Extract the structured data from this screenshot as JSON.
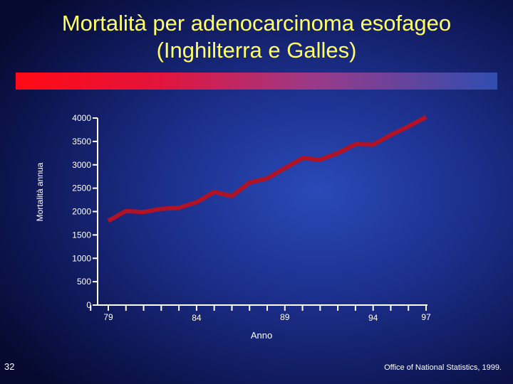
{
  "title": {
    "line1": "Mortalità per adenocarcinoma esofageo",
    "line2": "(Inghilterra e Galles)"
  },
  "slide_number": "32",
  "source": "Office of National Statistics, 1999.",
  "colors": {
    "title": "#ffff66",
    "line": "#b01226",
    "axis": "#ffffff"
  },
  "chart_data": {
    "type": "line",
    "title": "",
    "xlabel": "Anno",
    "ylabel": "Mortalità annua",
    "ylim": [
      0,
      4000
    ],
    "yticks": [
      0,
      500,
      1000,
      1500,
      2000,
      2500,
      3000,
      3500,
      4000
    ],
    "xlim": [
      78,
      97
    ],
    "xtick_labels": [
      "79",
      "84",
      "89",
      "94",
      "97"
    ],
    "xtick_label_values": [
      79,
      84,
      89,
      94,
      97
    ],
    "grid": false,
    "series": [
      {
        "x": [
          79,
          80,
          81,
          82,
          83,
          84,
          85,
          86,
          87,
          88,
          89,
          90,
          91,
          92,
          93,
          94,
          95,
          96,
          97
        ],
        "values": [
          1800,
          2010,
          1990,
          2060,
          2080,
          2200,
          2420,
          2330,
          2620,
          2710,
          2930,
          3140,
          3110,
          3250,
          3440,
          3430,
          3640,
          3820,
          4020
        ]
      }
    ]
  }
}
